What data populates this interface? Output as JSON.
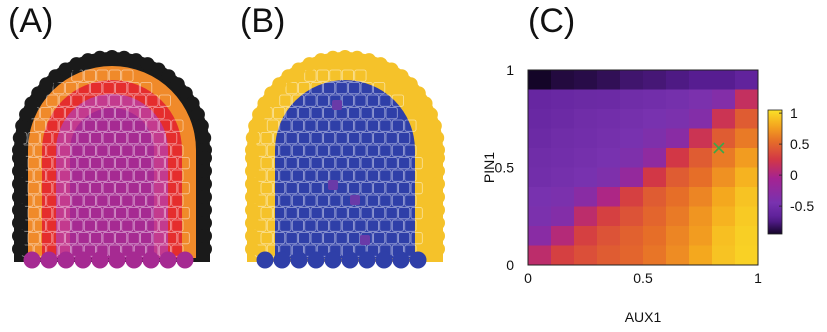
{
  "panels": {
    "a_label": "(A)",
    "b_label": "(B)",
    "c_label": "(C)"
  },
  "chart_data": {
    "type": "heatmap",
    "title": "",
    "xlabel": "AUX1",
    "ylabel": "PIN1",
    "xlim": [
      0,
      1
    ],
    "ylim": [
      0,
      1
    ],
    "x_ticks": [
      "0",
      "0.5",
      "1"
    ],
    "y_ticks": [
      "0",
      "0.5",
      "1"
    ],
    "colorbar": {
      "ticks": [
        "1",
        "0.5",
        "0",
        "-0.5"
      ],
      "tick_values": [
        1,
        0.5,
        0,
        -0.5
      ],
      "range": [
        -0.95,
        1.05
      ]
    },
    "marker": {
      "x": 0.83,
      "y": 0.6,
      "symbol": "x",
      "color": "#3aa84a"
    },
    "grid_size": 10,
    "rows_top_to_bottom": [
      [
        -0.95,
        -0.9,
        -0.88,
        -0.85,
        -0.8,
        -0.78,
        -0.75,
        -0.72,
        -0.72,
        -0.65
      ],
      [
        -0.6,
        -0.58,
        -0.56,
        -0.55,
        -0.52,
        -0.5,
        -0.48,
        -0.42,
        -0.35,
        0.15
      ],
      [
        -0.58,
        -0.55,
        -0.52,
        -0.5,
        -0.48,
        -0.45,
        -0.42,
        -0.35,
        0.2,
        0.45
      ],
      [
        -0.55,
        -0.52,
        -0.5,
        -0.48,
        -0.45,
        -0.4,
        -0.3,
        0.2,
        0.45,
        0.6
      ],
      [
        -0.52,
        -0.5,
        -0.48,
        -0.45,
        -0.4,
        -0.25,
        0.25,
        0.45,
        0.6,
        0.75
      ],
      [
        -0.5,
        -0.48,
        -0.45,
        -0.4,
        -0.2,
        0.25,
        0.45,
        0.55,
        0.7,
        0.85
      ],
      [
        -0.45,
        -0.42,
        -0.3,
        0.0,
        0.3,
        0.45,
        0.55,
        0.65,
        0.8,
        0.92
      ],
      [
        -0.42,
        -0.35,
        0.1,
        0.3,
        0.4,
        0.5,
        0.6,
        0.72,
        0.85,
        0.95
      ],
      [
        -0.3,
        0.05,
        0.3,
        0.4,
        0.48,
        0.55,
        0.65,
        0.75,
        0.9,
        0.97
      ],
      [
        0.1,
        0.3,
        0.38,
        0.45,
        0.5,
        0.58,
        0.68,
        0.8,
        0.92,
        0.98
      ]
    ]
  }
}
